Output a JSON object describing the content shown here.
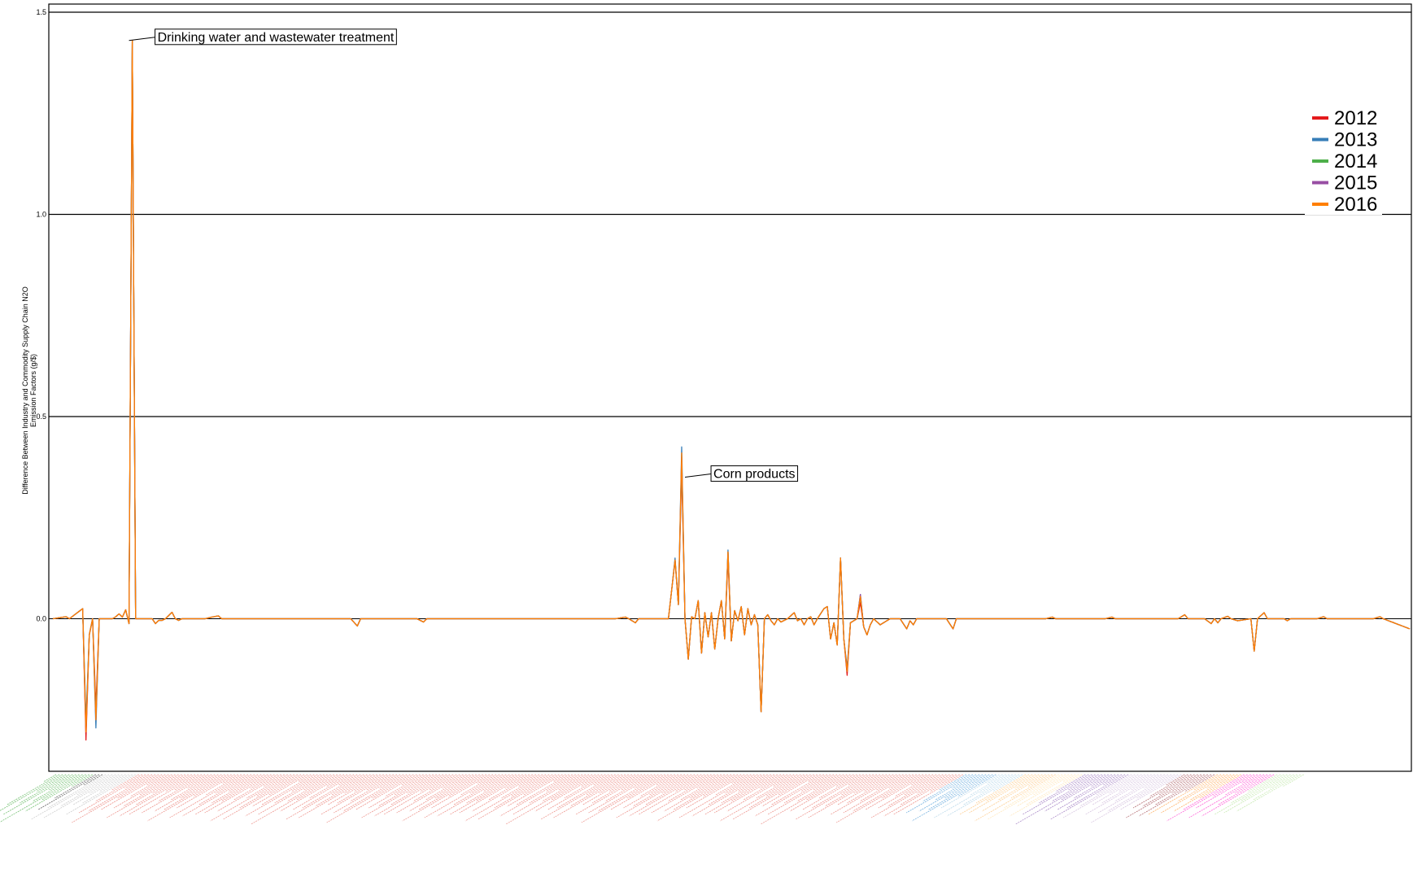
{
  "chart_data": {
    "type": "line",
    "ylabel_line1": "Difference Between Industry and Commodity Supply Chain N2O",
    "ylabel_line2": "Emission Factors (g/$)",
    "xlabel": "",
    "ylim": [
      -0.375,
      1.52
    ],
    "yticks": [
      0.0,
      0.5,
      1.0,
      1.5
    ],
    "ytick_labels": [
      "0.0",
      "0.5",
      "1.0",
      "1.5"
    ],
    "grid": "horizontal lines at major y ticks",
    "legend_position": "right",
    "x_count": 411,
    "annotations": [
      {
        "text": "Drinking water and wastewater treatment",
        "x": 23,
        "y": 1.43
      },
      {
        "text": "Corn products",
        "x": 191,
        "y": 0.35
      }
    ],
    "base_points": [
      [
        0,
        0.0
      ],
      [
        4,
        0.005
      ],
      [
        5,
        0.0
      ],
      [
        9,
        0.025
      ],
      [
        10,
        -0.29
      ],
      [
        12,
        0.0
      ],
      [
        11,
        -0.04
      ],
      [
        13,
        -0.26
      ],
      [
        14,
        0.0
      ],
      [
        18,
        0.0
      ],
      [
        19,
        0.005
      ],
      [
        20,
        0.012
      ],
      [
        21,
        0.004
      ],
      [
        22,
        0.022
      ],
      [
        23,
        -0.012
      ],
      [
        24,
        1.43
      ],
      [
        25,
        0.0
      ],
      [
        30,
        0.0
      ],
      [
        31,
        -0.012
      ],
      [
        32,
        -0.004
      ],
      [
        33,
        -0.004
      ],
      [
        34,
        0.0
      ],
      [
        36,
        0.016
      ],
      [
        37,
        0.0
      ],
      [
        38,
        -0.004
      ],
      [
        39,
        0.0
      ],
      [
        40,
        0.0
      ],
      [
        42,
        0.0
      ],
      [
        46,
        0.0
      ],
      [
        48,
        0.004
      ],
      [
        50,
        0.007
      ],
      [
        51,
        0.0
      ],
      [
        90,
        0.0
      ],
      [
        92,
        -0.018
      ],
      [
        93,
        0.0
      ],
      [
        110,
        0.0
      ],
      [
        112,
        -0.008
      ],
      [
        113,
        0.0
      ],
      [
        170,
        0.0
      ],
      [
        173,
        0.004
      ],
      [
        174,
        0.0
      ],
      [
        176,
        -0.01
      ],
      [
        177,
        0.0
      ],
      [
        186,
        0.0
      ],
      [
        188,
        0.145
      ],
      [
        189,
        0.035
      ],
      [
        190,
        0.42
      ],
      [
        191,
        0.0
      ],
      [
        192,
        -0.1
      ],
      [
        193,
        0.005
      ],
      [
        194,
        0.0
      ],
      [
        195,
        0.045
      ],
      [
        196,
        -0.085
      ],
      [
        197,
        0.015
      ],
      [
        198,
        -0.045
      ],
      [
        199,
        0.015
      ],
      [
        200,
        -0.075
      ],
      [
        201,
        0.0
      ],
      [
        202,
        0.045
      ],
      [
        203,
        -0.05
      ],
      [
        204,
        0.165
      ],
      [
        205,
        -0.055
      ],
      [
        206,
        0.02
      ],
      [
        207,
        -0.005
      ],
      [
        208,
        0.03
      ],
      [
        209,
        -0.04
      ],
      [
        210,
        0.025
      ],
      [
        211,
        -0.015
      ],
      [
        212,
        0.01
      ],
      [
        213,
        -0.015
      ],
      [
        214,
        -0.23
      ],
      [
        215,
        0.0
      ],
      [
        216,
        0.01
      ],
      [
        217,
        -0.005
      ],
      [
        218,
        -0.015
      ],
      [
        219,
        0.0
      ],
      [
        220,
        -0.008
      ],
      [
        222,
        0.0
      ],
      [
        224,
        0.015
      ],
      [
        225,
        -0.005
      ],
      [
        226,
        0.0
      ],
      [
        227,
        -0.015
      ],
      [
        228,
        0.0
      ],
      [
        229,
        0.005
      ],
      [
        230,
        -0.015
      ],
      [
        231,
        0.0
      ],
      [
        233,
        0.025
      ],
      [
        234,
        0.03
      ],
      [
        235,
        -0.05
      ],
      [
        236,
        -0.01
      ],
      [
        237,
        -0.065
      ],
      [
        238,
        0.15
      ],
      [
        239,
        -0.05
      ],
      [
        240,
        -0.13
      ],
      [
        241,
        -0.01
      ],
      [
        242,
        -0.005
      ],
      [
        243,
        0.0
      ],
      [
        244,
        0.055
      ],
      [
        245,
        -0.02
      ],
      [
        246,
        -0.04
      ],
      [
        247,
        -0.015
      ],
      [
        248,
        0.0
      ],
      [
        250,
        -0.015
      ],
      [
        252,
        -0.005
      ],
      [
        253,
        0.0
      ],
      [
        256,
        0.0
      ],
      [
        258,
        -0.025
      ],
      [
        259,
        -0.005
      ],
      [
        260,
        -0.015
      ],
      [
        261,
        0.0
      ],
      [
        262,
        0.0
      ],
      [
        264,
        0.0
      ],
      [
        270,
        0.0
      ],
      [
        272,
        -0.025
      ],
      [
        273,
        0.0
      ],
      [
        294,
        0.0
      ],
      [
        296,
        0.0
      ],
      [
        300,
        0.0
      ],
      [
        302,
        0.004
      ],
      [
        303,
        0.0
      ],
      [
        310,
        0.0
      ],
      [
        312,
        0.0
      ],
      [
        318,
        0.0
      ],
      [
        320,
        0.004
      ],
      [
        321,
        0.0
      ],
      [
        340,
        0.0
      ],
      [
        342,
        0.01
      ],
      [
        343,
        0.0
      ],
      [
        348,
        0.0
      ],
      [
        350,
        -0.012
      ],
      [
        351,
        0.0
      ],
      [
        352,
        -0.01
      ],
      [
        353,
        0.0
      ],
      [
        355,
        0.006
      ],
      [
        356,
        0.0
      ],
      [
        358,
        -0.005
      ],
      [
        362,
        0.0
      ],
      [
        363,
        -0.08
      ],
      [
        364,
        0.0
      ],
      [
        366,
        0.015
      ],
      [
        367,
        0.0
      ],
      [
        372,
        0.0
      ],
      [
        373,
        -0.005
      ],
      [
        374,
        0.0
      ],
      [
        382,
        0.0
      ],
      [
        384,
        0.005
      ],
      [
        385,
        0.0
      ],
      [
        399,
        0.0
      ],
      [
        401,
        0.005
      ],
      [
        402,
        0.0
      ],
      [
        410,
        -0.025
      ]
    ],
    "series": [
      {
        "name": "2012",
        "color": "#e41a1c",
        "overrides": [
          [
            10,
            -0.3
          ],
          [
            13,
            -0.22
          ],
          [
            190,
            0.37
          ],
          [
            192,
            -0.1
          ],
          [
            204,
            0.15
          ],
          [
            240,
            -0.14
          ],
          [
            244,
            0.04
          ]
        ]
      },
      {
        "name": "2013",
        "color": "#377eb8",
        "overrides": [
          [
            10,
            -0.25
          ],
          [
            13,
            -0.27
          ],
          [
            188,
            0.15
          ],
          [
            190,
            0.425
          ],
          [
            192,
            -0.1
          ],
          [
            204,
            0.17
          ],
          [
            240,
            -0.12
          ],
          [
            244,
            0.06
          ]
        ]
      },
      {
        "name": "2014",
        "color": "#4daf4a",
        "overrides": [
          [
            10,
            -0.27
          ],
          [
            13,
            -0.24
          ],
          [
            190,
            0.39
          ]
        ]
      },
      {
        "name": "2015",
        "color": "#984ea3",
        "overrides": [
          [
            10,
            -0.28
          ],
          [
            13,
            -0.25
          ],
          [
            190,
            0.4
          ],
          [
            244,
            0.06
          ]
        ]
      },
      {
        "name": "2016",
        "color": "#ff7f00",
        "overrides": [
          [
            10,
            -0.28
          ],
          [
            13,
            -0.25
          ],
          [
            190,
            0.41
          ],
          [
            240,
            -0.13
          ]
        ]
      }
    ],
    "category_groups": [
      {
        "count": 12,
        "color": "#4daf4a"
      },
      {
        "count": 3,
        "color": "#333333"
      },
      {
        "count": 10,
        "color": "#bdbdbd"
      },
      {
        "count": 250,
        "color": "#e8746a"
      },
      {
        "count": 10,
        "color": "#4a9ad6"
      },
      {
        "count": 8,
        "color": "#a6cee3"
      },
      {
        "count": 10,
        "color": "#fdbf6f"
      },
      {
        "count": 8,
        "color": "#ffe0a6"
      },
      {
        "count": 14,
        "color": "#8e63b5"
      },
      {
        "count": 16,
        "color": "#cab2d6"
      },
      {
        "count": 10,
        "color": "#9e4148"
      },
      {
        "count": 8,
        "color": "#ff9d3d"
      },
      {
        "count": 10,
        "color": "#ff33cc"
      },
      {
        "count": 9,
        "color": "#b6e39a"
      }
    ]
  }
}
